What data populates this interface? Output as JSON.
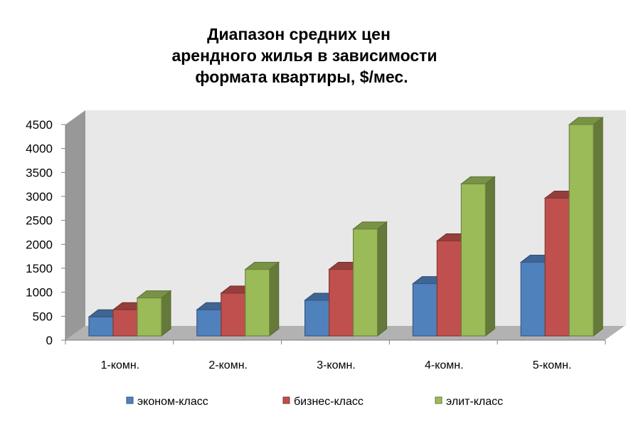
{
  "chart_data": {
    "type": "bar",
    "style": "3d-clustered-column",
    "title": [
      "Диапазон средних цен",
      "арендного жилья в зависимости",
      "формата квартиры, $/мес."
    ],
    "categories": [
      "1-комн.",
      "2-комн.",
      "3-комн.",
      "4-комн.",
      "5-комн."
    ],
    "series": [
      {
        "name": "эконом-класс",
        "color": "#4f81bd",
        "values": [
          400,
          550,
          750,
          1100,
          1550
        ]
      },
      {
        "name": "бизнес-класс",
        "color": "#c0504d",
        "values": [
          550,
          900,
          1400,
          2000,
          2900
        ]
      },
      {
        "name": "элит-класс",
        "color": "#9bbb59",
        "values": [
          800,
          1400,
          2250,
          3200,
          4450
        ]
      }
    ],
    "ylim": [
      0,
      4500
    ],
    "yticks": [
      "0",
      "500",
      "1000",
      "1500",
      "2000",
      "2500",
      "3000",
      "3500",
      "4000",
      "4500"
    ],
    "grid": false,
    "legend": "bottom"
  }
}
